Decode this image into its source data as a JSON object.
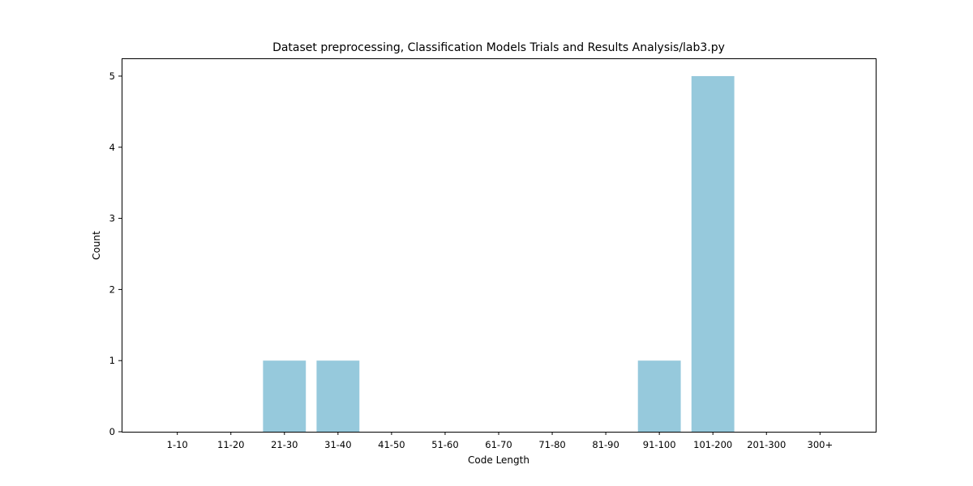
{
  "chart_data": {
    "type": "bar",
    "title": "Dataset preprocessing, Classification Models Trials and Results Analysis/lab3.py",
    "xlabel": "Code Length",
    "ylabel": "Count",
    "categories": [
      "1-10",
      "11-20",
      "21-30",
      "31-40",
      "41-50",
      "51-60",
      "61-70",
      "71-80",
      "81-90",
      "91-100",
      "101-200",
      "201-300",
      "300+"
    ],
    "values": [
      0,
      0,
      1,
      1,
      0,
      0,
      0,
      0,
      0,
      1,
      5,
      0,
      0
    ],
    "ylim": [
      0,
      5.25
    ],
    "yticks": [
      0,
      1,
      2,
      3,
      4,
      5
    ],
    "bar_color": "#96c9dc",
    "grid": false,
    "legend": "none"
  }
}
